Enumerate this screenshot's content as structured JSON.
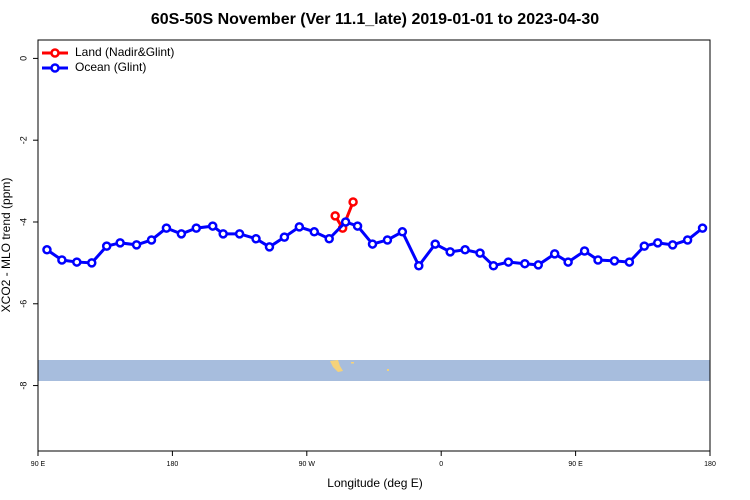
{
  "chart_data": {
    "type": "line",
    "title": "60S-50S November (Ver 11.1_late)   2019-01-01 to 2023-04-30",
    "x_label": "Longitude (deg E)",
    "y_label": "XCO2 - MLO trend (ppm)",
    "xlim": [
      90,
      540
    ],
    "ylim": [
      -9.6,
      0.45
    ],
    "xticks": [
      {
        "value": 90,
        "label": "90 E"
      },
      {
        "value": 180,
        "label": "180"
      },
      {
        "value": 270,
        "label": "90 W"
      },
      {
        "value": 360,
        "label": "0"
      },
      {
        "value": 450,
        "label": "90 E"
      },
      {
        "value": 540,
        "label": "180"
      }
    ],
    "yticks": [
      0,
      -2,
      -4,
      -6,
      -8
    ],
    "legend_position": "top-left",
    "series": [
      {
        "name": "Land (Nadir&Glint)",
        "color": "#ff0000",
        "x": [
          289,
          294,
          301
        ],
        "values": [
          -3.85,
          -4.15,
          -3.51
        ]
      },
      {
        "name": "Ocean (Glint)",
        "color": "#0000ff",
        "x": [
          96,
          106,
          116,
          126,
          136,
          145,
          156,
          166,
          176,
          186,
          196,
          207,
          214,
          225,
          236,
          245,
          255,
          265,
          275,
          285,
          296,
          304,
          314,
          324,
          334,
          345,
          356,
          366,
          376,
          386,
          395,
          405,
          416,
          425,
          436,
          445,
          456,
          465,
          476,
          486,
          496,
          505,
          515,
          525,
          535
        ],
        "values": [
          -4.68,
          -4.93,
          -4.98,
          -5.0,
          -4.59,
          -4.51,
          -4.56,
          -4.44,
          -4.15,
          -4.29,
          -4.15,
          -4.1,
          -4.29,
          -4.29,
          -4.41,
          -4.61,
          -4.37,
          -4.12,
          -4.24,
          -4.41,
          -4.0,
          -4.1,
          -4.54,
          -4.44,
          -4.24,
          -5.07,
          -4.54,
          -4.73,
          -4.68,
          -4.76,
          -5.07,
          -4.98,
          -5.02,
          -5.05,
          -4.78,
          -4.98,
          -4.71,
          -4.93,
          -4.95,
          -4.98,
          -4.59,
          -4.51,
          -4.56,
          -4.44,
          -4.15
        ]
      }
    ]
  }
}
